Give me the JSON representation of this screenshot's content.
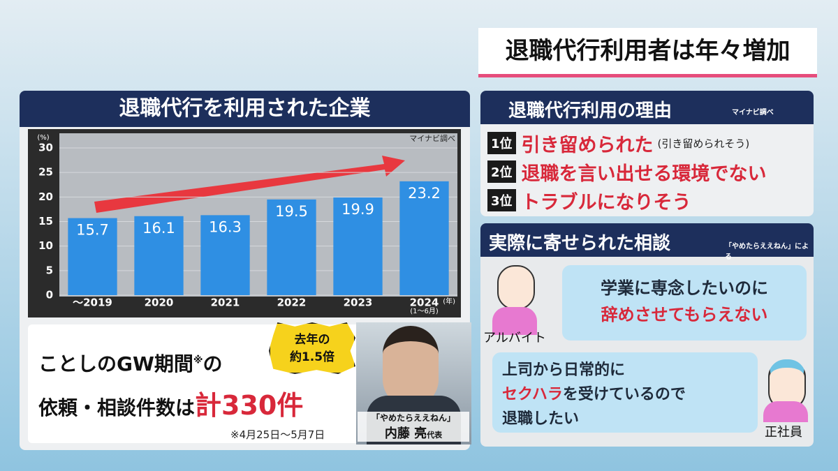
{
  "header": {
    "title": "退職代行利用者は年々増加"
  },
  "chart_data": {
    "type": "bar",
    "title": "退職代行を利用された企業",
    "source": "マイナビ調べ",
    "y_unit": "(%)",
    "x_unit": "(年)",
    "period_note": "(1～6月)",
    "categories": [
      "～2019",
      "2020",
      "2021",
      "2022",
      "2023",
      "2024"
    ],
    "values": [
      15.7,
      16.1,
      16.3,
      19.5,
      19.9,
      23.2
    ],
    "color": "#2f8fe3",
    "ylim": [
      0,
      30
    ],
    "yticks": [
      0,
      5,
      10,
      15,
      20,
      25,
      30
    ],
    "grid": true
  },
  "reasons": {
    "title": "退職代行利用の理由",
    "source": "マイナビ調べ",
    "items": [
      {
        "rank": "1位",
        "text": "引き留められた",
        "note": "(引き留められそう)"
      },
      {
        "rank": "2位",
        "text": "退職を言い出せる環境でない"
      },
      {
        "rank": "3位",
        "text": "トラブルになりそう"
      }
    ]
  },
  "consultations": {
    "title": "実際に寄せられた相談",
    "source": "「やめたらええねん」による",
    "items": [
      {
        "role": "アルバイト",
        "line1": "学業に専念したいのに",
        "line2": "辞めさせてもらえない"
      },
      {
        "role": "正社員",
        "line1": "上司から日常的に",
        "line2_red": "セクハラ",
        "line2_rest": "を受けているので",
        "line3": "退職したい"
      }
    ]
  },
  "highlight": {
    "line1": "ことしのGW期間",
    "mark": "※",
    "line1_end": "の",
    "line2": "依頼・相談件数は",
    "total": "計330件",
    "badge_line1": "去年の",
    "badge_line2": "約1.5倍",
    "footnote": "※4月25日～5月7日"
  },
  "person": {
    "org": "「やめたらええねん」",
    "name": "内藤 亮",
    "role": "代表"
  }
}
